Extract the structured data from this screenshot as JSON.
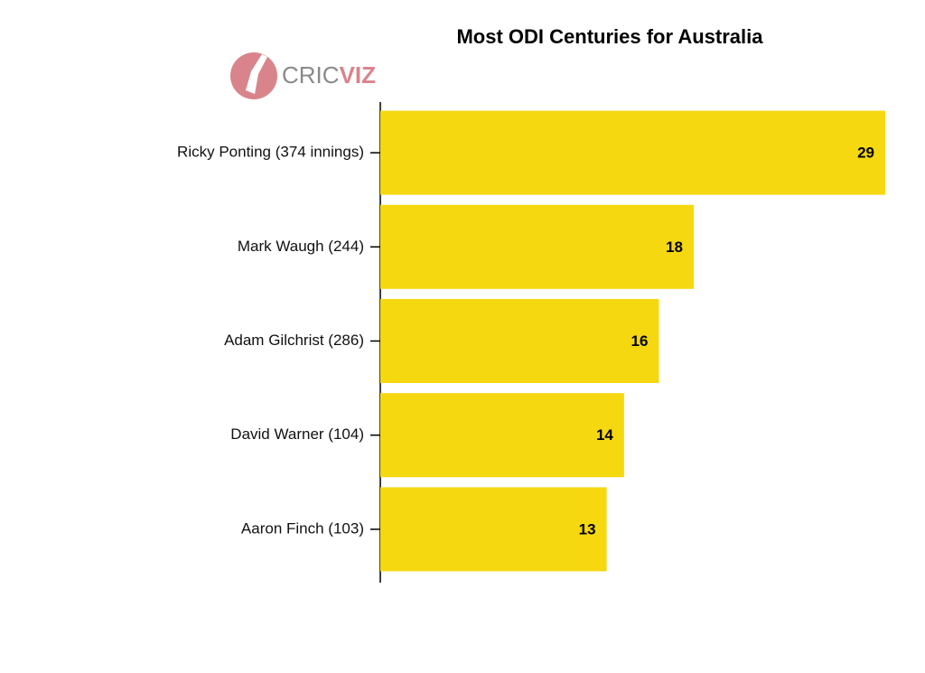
{
  "logo": {
    "parts": [
      "CRIC",
      "VIZ"
    ]
  },
  "chart_data": {
    "type": "bar",
    "orientation": "horizontal",
    "title": "Most ODI Centuries for Australia",
    "categories": [
      "Ricky Ponting (374 innings)",
      "Mark Waugh (244)",
      "Adam Gilchrist (286)",
      "David Warner (104)",
      "Aaron Finch (103)"
    ],
    "values": [
      29,
      18,
      16,
      14,
      13
    ],
    "color": "#f5d80f",
    "xlim": [
      0,
      29
    ]
  }
}
